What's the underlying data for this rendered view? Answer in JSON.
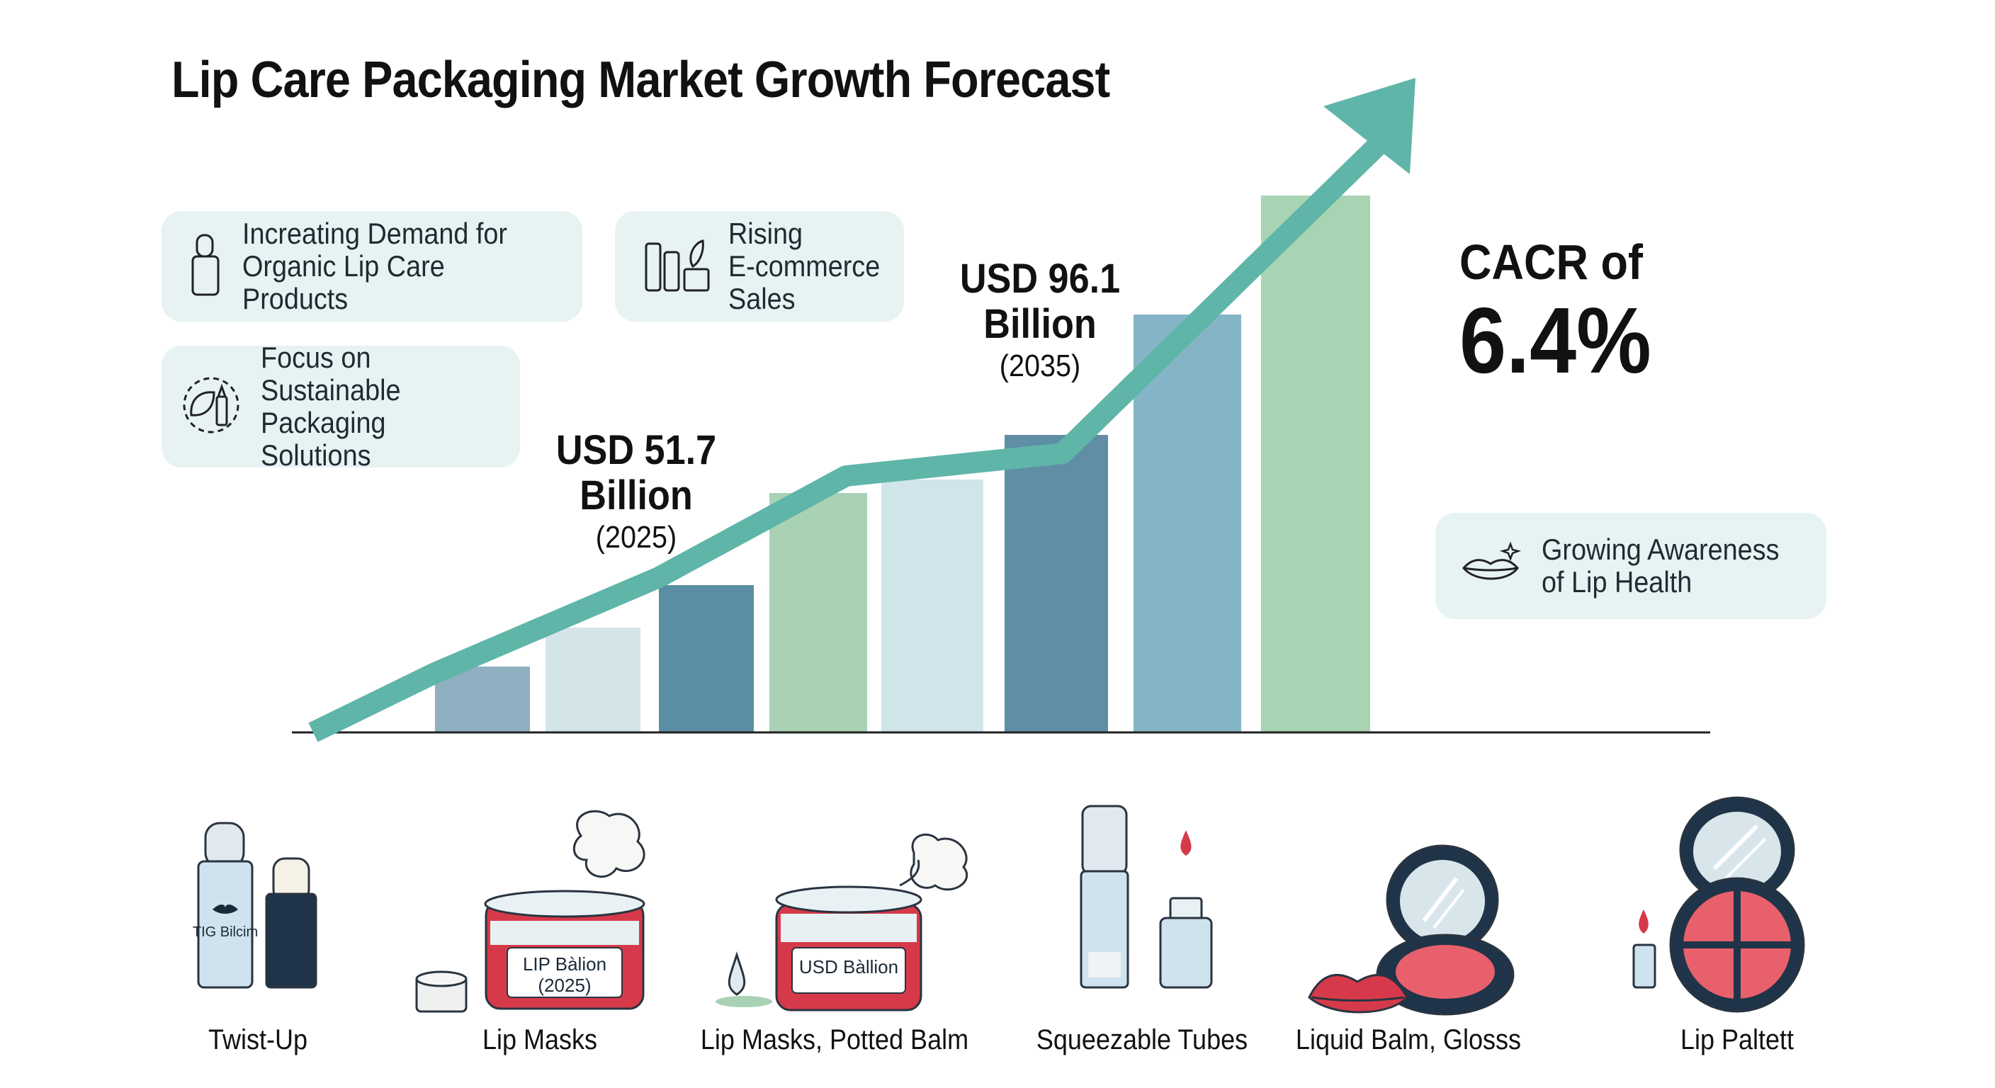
{
  "title": "Lip Care Packaging Market Growth Forecast",
  "drivers": [
    {
      "icon": "lip-balm-tube-icon",
      "text": "Increating Demand for\nOrganic Lip Care Products"
    },
    {
      "icon": "e-commerce-bottles-icon",
      "text": "Rising\nE-commerce\nSales"
    },
    {
      "icon": "leaf-gear-icon",
      "text": "Focus on\nSustainable Packaging\nSolutions"
    },
    {
      "icon": "lips-icon",
      "text": "Growing Awareness\nof Lip Health"
    }
  ],
  "annotations": {
    "y2025": {
      "value": "USD 51.7",
      "unit": "Billion",
      "year": "(2025)"
    },
    "y2035": {
      "value": "USD 96.1",
      "unit": "Billion",
      "year": "(2035)"
    }
  },
  "cagr": {
    "label": "CACR of",
    "value": "6.4%"
  },
  "chart_data": {
    "type": "bar",
    "title": "Lip Care Packaging Market Growth Forecast",
    "xlabel": "",
    "ylabel": "",
    "bar_heights_relative": [
      93,
      148,
      208,
      338,
      357,
      420,
      590,
      758
    ],
    "trend_line": "increasing arrow over bars",
    "labeled_points": [
      {
        "label": "USD 51.7 Billion (2025)",
        "value": 51.7,
        "year": 2025
      },
      {
        "label": "USD 96.1 Billion (2035)",
        "value": 96.1,
        "year": 2035
      }
    ],
    "colors": [
      "#8fb0c0",
      "#d4e5ea",
      "#5b8ea3",
      "#a9d2b4",
      "#cfe5ea",
      "#5f8ea5",
      "#84b5c6",
      "#a8d4b4"
    ],
    "trend_color": "#5fb5a8",
    "grid": false,
    "legend": "none"
  },
  "packaging": [
    {
      "label": "Twist-Up",
      "tag": "TIG Bilcim"
    },
    {
      "label": "Lip Masks",
      "tag": "LIP Bàlion",
      "tag2": "(2025)"
    },
    {
      "label": "Lip Masks, Potted Balm",
      "tag": "USD Bàllion"
    },
    {
      "label": "Squeezable Tubes"
    },
    {
      "label": "Liquid Balm, Glosss"
    },
    {
      "label": "Lip Paltett"
    }
  ]
}
